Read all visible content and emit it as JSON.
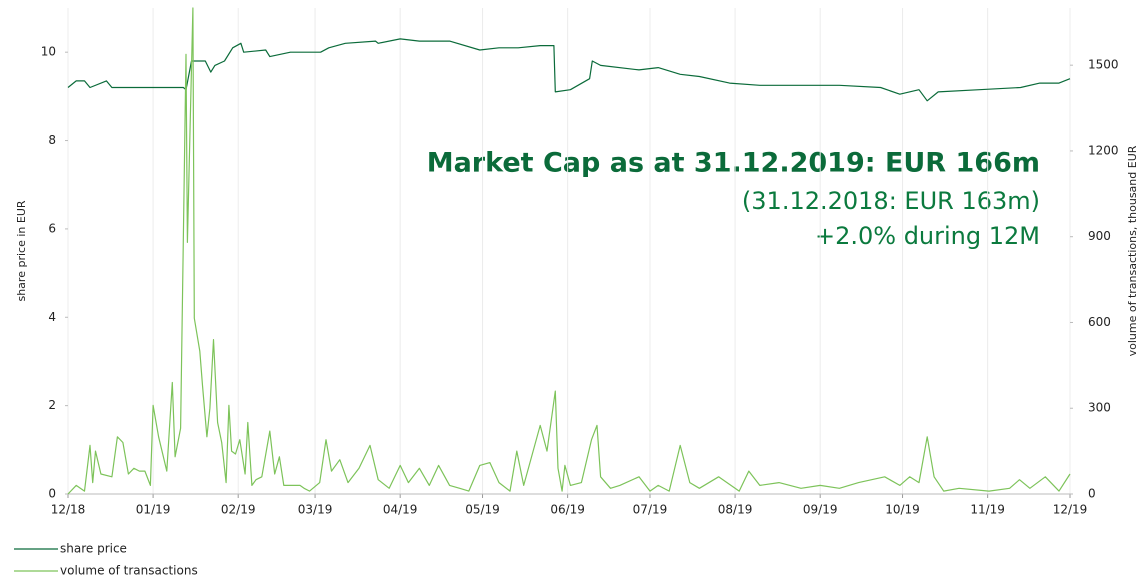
{
  "chart_data": {
    "type": "line",
    "ylabel": "share price in EUR",
    "y2label": "volume of transactions, thousand EUR",
    "annotations": [
      "Market Cap as at 31.12.2019: EUR 166m",
      "(31.12.2018: EUR 163m)",
      "+2.0% during 12M"
    ],
    "xlim": [
      0,
      365
    ],
    "xticks": [
      {
        "value": 0,
        "label": "12/18"
      },
      {
        "value": 31,
        "label": "01/19"
      },
      {
        "value": 62,
        "label": "02/19"
      },
      {
        "value": 90,
        "label": "03/19"
      },
      {
        "value": 121,
        "label": "04/19"
      },
      {
        "value": 151,
        "label": "05/19"
      },
      {
        "value": 182,
        "label": "06/19"
      },
      {
        "value": 212,
        "label": "07/19"
      },
      {
        "value": 243,
        "label": "08/19"
      },
      {
        "value": 274,
        "label": "09/19"
      },
      {
        "value": 304,
        "label": "10/19"
      },
      {
        "value": 335,
        "label": "11/19"
      },
      {
        "value": 365,
        "label": "12/19"
      }
    ],
    "ylim": [
      0,
      11
    ],
    "yticks": [
      0,
      2,
      4,
      6,
      8,
      10
    ],
    "y2lim": [
      0,
      1700
    ],
    "y2ticks": [
      0,
      300,
      600,
      900,
      1200,
      1500
    ],
    "grid": "x",
    "legend": "bottom-left",
    "series": [
      {
        "name": "share price",
        "color": "#0b6b3a",
        "axis": "y",
        "x": [
          0,
          3,
          6,
          8,
          14,
          16,
          25,
          35,
          42,
          43,
          45,
          50,
          52,
          53.5,
          57,
          60,
          63,
          64,
          72,
          73.5,
          81,
          92,
          95,
          101,
          112,
          113,
          121,
          128,
          139,
          150,
          157,
          164,
          172,
          177,
          177.5,
          183,
          190,
          191,
          194,
          208,
          215,
          223,
          230,
          241,
          252,
          267,
          281,
          296,
          303,
          310,
          313,
          317,
          332,
          347,
          354,
          361,
          365
        ],
        "values": [
          9.2,
          9.35,
          9.35,
          9.2,
          9.35,
          9.2,
          9.2,
          9.2,
          9.2,
          9.15,
          9.8,
          9.8,
          9.55,
          9.7,
          9.8,
          10.1,
          10.2,
          10.0,
          10.05,
          9.9,
          10.0,
          10.0,
          10.1,
          10.2,
          10.25,
          10.2,
          10.3,
          10.25,
          10.25,
          10.05,
          10.1,
          10.1,
          10.15,
          10.15,
          9.1,
          9.15,
          9.4,
          9.8,
          9.7,
          9.6,
          9.65,
          9.5,
          9.45,
          9.3,
          9.25,
          9.25,
          9.25,
          9.2,
          9.05,
          9.15,
          8.9,
          9.1,
          9.15,
          9.2,
          9.3,
          9.3,
          9.4
        ]
      },
      {
        "name": "volume of transactions",
        "color": "#7dc35a",
        "axis": "y2",
        "x": [
          0,
          3,
          6,
          8,
          9,
          10,
          12,
          16,
          18,
          20,
          22,
          24,
          26,
          28,
          30,
          31,
          33,
          36,
          38,
          39,
          41,
          43,
          43.5,
          45.5,
          46,
          48,
          49,
          50.6,
          51.7,
          53,
          54.5,
          56,
          57.6,
          58.6,
          59.6,
          61,
          62.6,
          64.5,
          65.5,
          67,
          68.5,
          70.6,
          73.5,
          75.3,
          77,
          78.6,
          81,
          84.5,
          86,
          88,
          91.7,
          94,
          96,
          99,
          102,
          106,
          110,
          113,
          117,
          121,
          124,
          128,
          131.6,
          135,
          139,
          142.7,
          146,
          150,
          153.7,
          157,
          161,
          163.5,
          166,
          172,
          174.5,
          177.5,
          178.5,
          180,
          181,
          183,
          187,
          190.7,
          192.7,
          194,
          197.6,
          201,
          208,
          212,
          215,
          219,
          223,
          226.5,
          230,
          237,
          244.5,
          248,
          252,
          259,
          267,
          274,
          281,
          288,
          297.5,
          303,
          306.6,
          310,
          313,
          315.5,
          319,
          324.6,
          335.5,
          343,
          346.6,
          350.4,
          356,
          361,
          365
        ],
        "values": [
          0,
          30,
          10,
          170,
          40,
          150,
          70,
          60,
          200,
          180,
          70,
          90,
          80,
          80,
          30,
          310,
          200,
          80,
          390,
          130,
          230,
          1538,
          880,
          1700,
          615,
          500,
          380,
          200,
          300,
          540,
          250,
          180,
          40,
          310,
          150,
          140,
          190,
          70,
          250,
          30,
          50,
          60,
          220,
          70,
          130,
          30,
          30,
          30,
          20,
          10,
          40,
          190,
          80,
          120,
          40,
          90,
          170,
          50,
          20,
          100,
          40,
          90,
          30,
          100,
          30,
          20,
          10,
          100,
          110,
          40,
          10,
          150,
          30,
          240,
          150,
          360,
          90,
          10,
          100,
          30,
          40,
          190,
          240,
          60,
          20,
          30,
          60,
          10,
          30,
          10,
          170,
          40,
          20,
          60,
          10,
          80,
          30,
          40,
          20,
          30,
          20,
          40,
          60,
          30,
          60,
          40,
          200,
          60,
          10,
          20,
          10,
          20,
          50,
          20,
          60,
          10,
          70
        ]
      }
    ]
  }
}
